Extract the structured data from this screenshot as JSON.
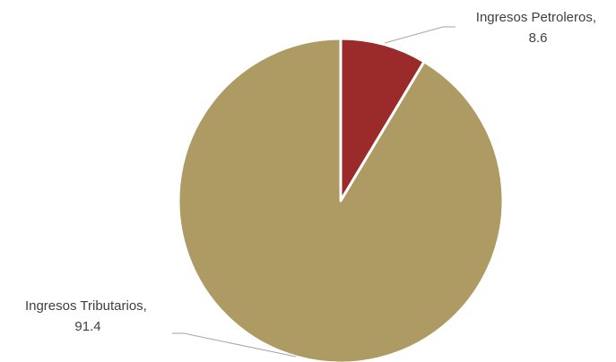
{
  "chart_data": {
    "type": "pie",
    "title": "",
    "slices": [
      {
        "label": "Ingresos Petroleros",
        "value": 8.6,
        "color": "#9B2A2A"
      },
      {
        "label": "Ingresos Tributarios",
        "value": 91.4,
        "color": "#AD9B63"
      }
    ],
    "start_angle_deg": 0,
    "direction": "clockwise",
    "legend": "none",
    "data_labels": [
      {
        "line1": "Ingresos Petroleros,",
        "line2": "8.6"
      },
      {
        "line1": "Ingresos Tributarios,",
        "line2": "91.4"
      }
    ]
  }
}
